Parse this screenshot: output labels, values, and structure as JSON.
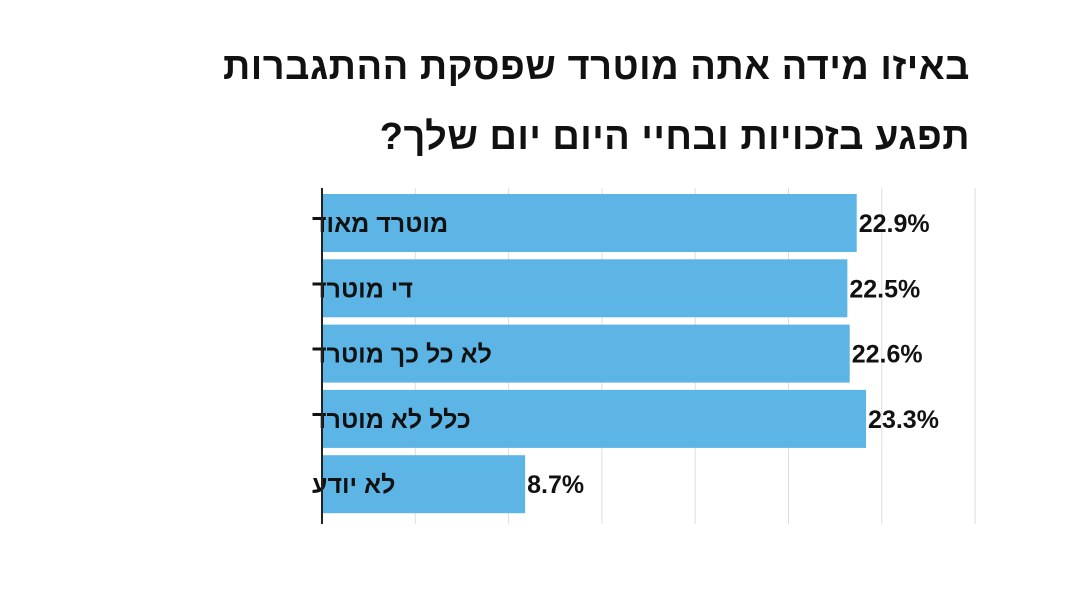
{
  "chart_data": {
    "type": "bar",
    "orientation": "horizontal",
    "title": "באיזו מידה אתה מוטרד שפסקת ההתגברות תפגע בזכויות ובחיי היום יום שלך?",
    "title_lines": [
      "באיזו מידה אתה מוטרד שפסקת ההתגברות",
      "תפגע בזכויות ובחיי היום יום שלך?"
    ],
    "categories": [
      "מוטרד מאוד",
      "די מוטרד",
      "לא כל כך מוטרד",
      "כלל לא מוטרד",
      "לא יודע"
    ],
    "values": [
      22.9,
      22.5,
      22.6,
      23.3,
      8.7
    ],
    "value_labels": [
      "22.9%",
      "22.5%",
      "22.6%",
      "23.3%",
      "8.7%"
    ],
    "xlim": [
      0,
      28
    ],
    "grid": true,
    "bar_color": "#5db5e5",
    "grid_color": "#dddddd",
    "axis_color": "#222222"
  }
}
